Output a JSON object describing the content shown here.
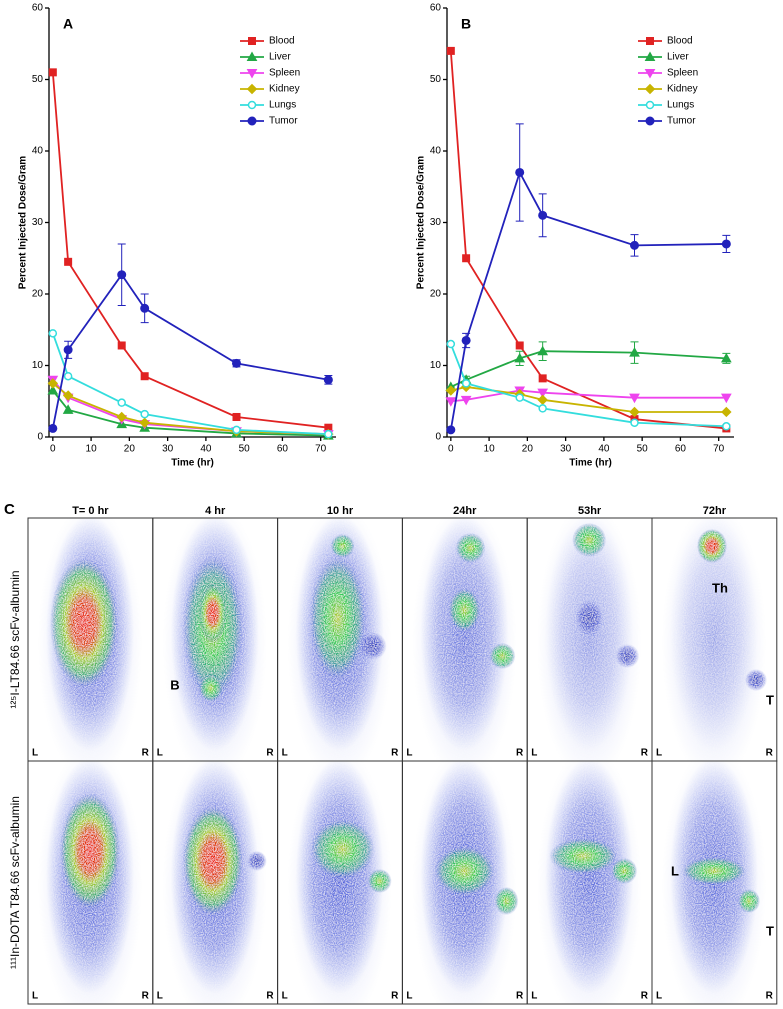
{
  "chart_data": [
    {
      "type": "line",
      "title": "A",
      "xlabel": "Time (hr)",
      "ylabel": "Percent Injected Dose/Gram",
      "x": [
        0,
        4,
        18,
        24,
        48,
        72
      ],
      "xlim": [
        -1,
        74
      ],
      "xticks": [
        0,
        10,
        20,
        30,
        40,
        50,
        60,
        70
      ],
      "ylim": [
        0,
        60
      ],
      "yticks": [
        0,
        10,
        20,
        30,
        40,
        50,
        60
      ],
      "legend": "upper right",
      "series": [
        {
          "name": "Blood",
          "color": "#e02222",
          "marker": "square",
          "values": [
            51,
            24.5,
            12.8,
            8.5,
            2.8,
            1.3
          ]
        },
        {
          "name": "Liver",
          "color": "#22a844",
          "marker": "triangle",
          "values": [
            6.5,
            3.8,
            1.8,
            1.3,
            0.5,
            0.2
          ]
        },
        {
          "name": "Spleen",
          "color": "#ee44ee",
          "marker": "triangle-down",
          "values": [
            8,
            5.5,
            2.5,
            1.8,
            0.8,
            0.4
          ]
        },
        {
          "name": "Kidney",
          "color": "#c8b400",
          "marker": "diamond",
          "values": [
            7.5,
            5.8,
            2.8,
            2,
            0.8,
            0.4
          ]
        },
        {
          "name": "Lungs",
          "color": "#33dddd",
          "marker": "circle-open",
          "values": [
            14.5,
            8.5,
            4.8,
            3.2,
            1,
            0.4
          ]
        },
        {
          "name": "Tumor",
          "color": "#2222bb",
          "marker": "circle",
          "values": [
            1.2,
            12.2,
            22.7,
            18,
            10.3,
            8
          ],
          "errors": [
            0,
            1.2,
            4.3,
            2,
            0.5,
            0.6
          ]
        }
      ]
    },
    {
      "type": "line",
      "title": "B",
      "xlabel": "Time (hr)",
      "ylabel": "Percent Injected Dose/Gram",
      "x": [
        0,
        4,
        18,
        24,
        48,
        72
      ],
      "xlim": [
        -1,
        74
      ],
      "xticks": [
        0,
        10,
        20,
        30,
        40,
        50,
        60,
        70
      ],
      "ylim": [
        0,
        60
      ],
      "yticks": [
        0,
        10,
        20,
        30,
        40,
        50,
        60
      ],
      "legend": "upper right",
      "series": [
        {
          "name": "Blood",
          "color": "#e02222",
          "marker": "square",
          "values": [
            54,
            25,
            12.8,
            8.2,
            2.5,
            1.2
          ]
        },
        {
          "name": "Liver",
          "color": "#22a844",
          "marker": "triangle",
          "values": [
            7,
            8,
            11,
            12,
            11.8,
            11
          ],
          "errors": [
            0,
            0.5,
            1,
            1.3,
            1.5,
            0.7
          ]
        },
        {
          "name": "Spleen",
          "color": "#ee44ee",
          "marker": "triangle-down",
          "values": [
            5,
            5.2,
            6.5,
            6.2,
            5.5,
            5.5
          ]
        },
        {
          "name": "Kidney",
          "color": "#c8b400",
          "marker": "diamond",
          "values": [
            6.5,
            7,
            6,
            5.2,
            3.5,
            3.5
          ]
        },
        {
          "name": "Lungs",
          "color": "#33dddd",
          "marker": "circle-open",
          "values": [
            13,
            7.5,
            5.5,
            4,
            2,
            1.5
          ]
        },
        {
          "name": "Tumor",
          "color": "#2222bb",
          "marker": "circle",
          "values": [
            1,
            13.5,
            37,
            31,
            26.8,
            27
          ],
          "errors": [
            0,
            1,
            6.8,
            3,
            1.5,
            1.2
          ]
        }
      ]
    }
  ],
  "panel_c": {
    "label": "C",
    "times": [
      "T=  0 hr",
      "4 hr",
      "10 hr",
      "24hr",
      "53hr",
      "72hr"
    ],
    "rows": [
      "¹²⁵I-LT84.66 scFv-albumin",
      "¹¹¹In-DOTA T84.66 scFv-albumin"
    ],
    "corner_left": "L",
    "corner_right": "R",
    "annotations": [
      "B",
      "Th",
      "T",
      "L",
      "T"
    ]
  }
}
